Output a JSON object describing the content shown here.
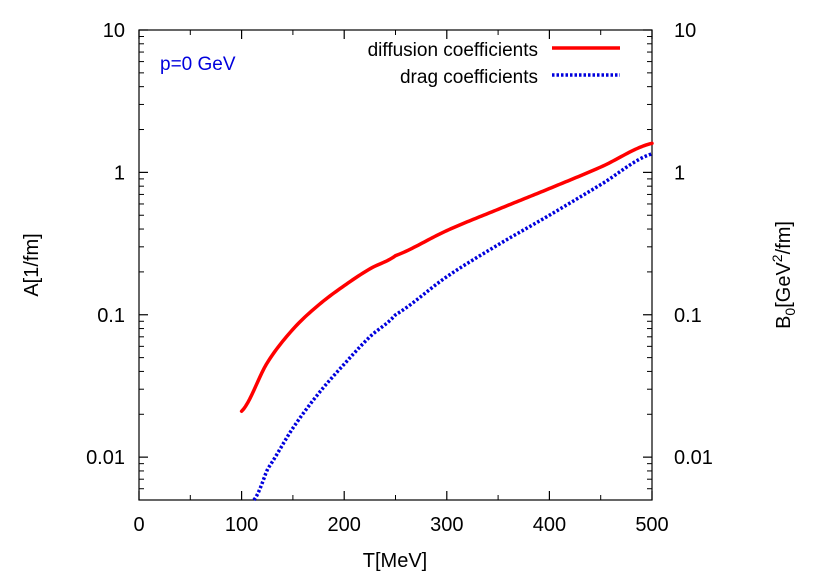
{
  "chart_data": {
    "type": "line",
    "title": "",
    "annotation": "p=0 GeV",
    "xlabel": "T[MeV]",
    "ylabel_left": "A[1/fm]",
    "ylabel_right_parts": {
      "base": "B",
      "sub": "0",
      "mid": "[GeV",
      "sup": "2",
      "tail": "/fm]"
    },
    "xlim": [
      0,
      500
    ],
    "ylim": [
      0.005,
      10
    ],
    "yscale": "log",
    "x_ticks": [
      "0",
      "100",
      "200",
      "300",
      "400",
      "500"
    ],
    "y_ticks": [
      "0.01",
      "0.1",
      "1",
      "10"
    ],
    "y_ticks_right": [
      "0.01",
      "0.1",
      "1",
      "10"
    ],
    "grid": false,
    "legend_position": "top-right",
    "series": [
      {
        "name": "diffusion coefficients",
        "color": "#ff0000",
        "style": "solid",
        "x": [
          100,
          125,
          150,
          175,
          200,
          225,
          250,
          300,
          350,
          400,
          450,
          500
        ],
        "y": [
          0.021,
          0.046,
          0.079,
          0.117,
          0.16,
          0.21,
          0.26,
          0.39,
          0.55,
          0.77,
          1.09,
          1.6
        ]
      },
      {
        "name": "drag coefficients",
        "color": "#0000dd",
        "style": "dotted",
        "x": [
          112,
          125,
          150,
          175,
          200,
          225,
          250,
          300,
          350,
          400,
          450,
          500
        ],
        "y": [
          0.005,
          0.0082,
          0.016,
          0.028,
          0.045,
          0.07,
          0.1,
          0.185,
          0.31,
          0.5,
          0.82,
          1.35
        ]
      }
    ]
  }
}
